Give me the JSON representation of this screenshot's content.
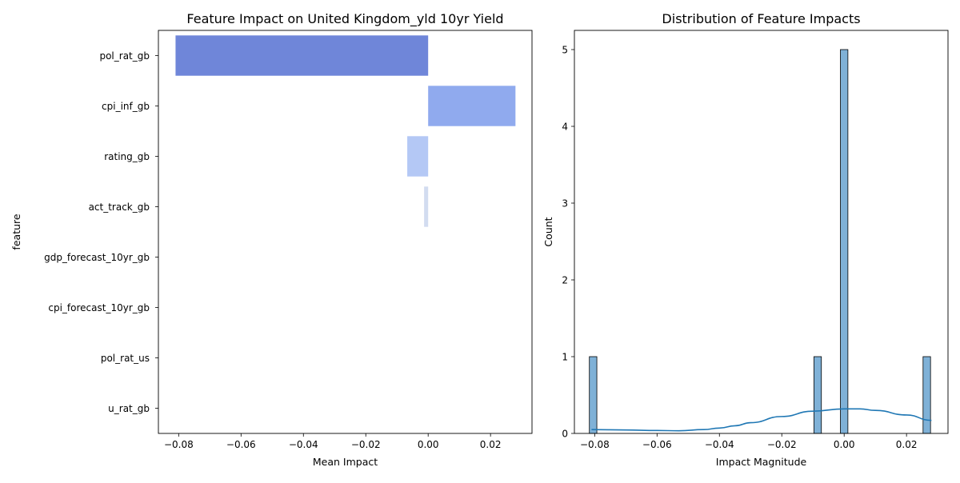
{
  "chart_data": [
    {
      "type": "bar",
      "orientation": "horizontal",
      "title": "Feature Impact on United Kingdom_yld 10yr Yield",
      "xlabel": "Mean Impact",
      "ylabel": "feature",
      "categories": [
        "pol_rat_gb",
        "cpi_inf_gb",
        "rating_gb",
        "act_track_gb",
        "gdp_forecast_10yr_gb",
        "cpi_forecast_10yr_gb",
        "pol_rat_us",
        "u_rat_gb"
      ],
      "values": [
        -0.081,
        0.028,
        -0.0067,
        -0.0013,
        0.0,
        0.0,
        0.0,
        0.0
      ],
      "colors": [
        "#6f86d9",
        "#90aaee",
        "#b4c8f5",
        "#d2dcf0",
        "#e6e9f0",
        "#eeeeee",
        "#f2f2f2",
        "#f5f5f5"
      ],
      "xlim": [
        -0.0865,
        0.0333
      ],
      "xticks": [
        -0.08,
        -0.06,
        -0.04,
        -0.02,
        0.0,
        0.02
      ],
      "xtick_labels": [
        "−0.08",
        "−0.06",
        "−0.04",
        "−0.02",
        "0.00",
        "0.02"
      ],
      "grid": false
    },
    {
      "type": "histogram",
      "title": "Distribution of Feature Impacts",
      "xlabel": "Impact Magnitude",
      "ylabel": "Count",
      "bins": [
        {
          "center": -0.0805,
          "count": 1
        },
        {
          "center": -0.0085,
          "count": 1
        },
        {
          "center": 0.0,
          "count": 5
        },
        {
          "center": 0.0265,
          "count": 1
        }
      ],
      "bin_width": 0.0024,
      "bar_color": "#7fb1d7",
      "kde": {
        "color": "#1f77b4",
        "points": [
          [
            -0.081,
            0.05
          ],
          [
            -0.07,
            0.045
          ],
          [
            -0.06,
            0.038
          ],
          [
            -0.053,
            0.035
          ],
          [
            -0.045,
            0.05
          ],
          [
            -0.04,
            0.07
          ],
          [
            -0.035,
            0.1
          ],
          [
            -0.03,
            0.14
          ],
          [
            -0.02,
            0.22
          ],
          [
            -0.01,
            0.29
          ],
          [
            0.0,
            0.32
          ],
          [
            0.005,
            0.32
          ],
          [
            0.01,
            0.3
          ],
          [
            0.02,
            0.24
          ],
          [
            0.028,
            0.17
          ]
        ]
      },
      "xlim": [
        -0.0865,
        0.0333
      ],
      "ylim": [
        0,
        5.25
      ],
      "xticks": [
        -0.08,
        -0.06,
        -0.04,
        -0.02,
        0.0,
        0.02
      ],
      "xtick_labels": [
        "−0.08",
        "−0.06",
        "−0.04",
        "−0.02",
        "0.00",
        "0.02"
      ],
      "yticks": [
        0,
        1,
        2,
        3,
        4,
        5
      ],
      "grid": false
    }
  ]
}
